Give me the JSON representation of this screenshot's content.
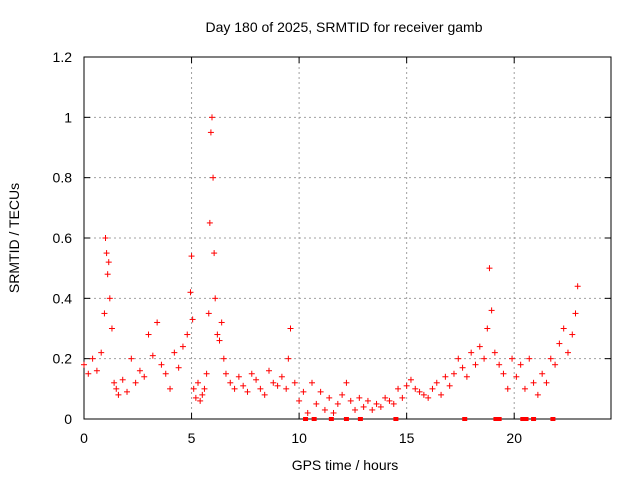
{
  "chart_data": {
    "type": "scatter",
    "title": "Day 180 of 2025, SRMTID for receiver gamb",
    "xlabel": "GPS time / hours",
    "ylabel": "SRMTID / TECUs",
    "xlim": [
      0,
      24.5
    ],
    "ylim": [
      0,
      1.2
    ],
    "x_ticks": [
      0,
      5,
      10,
      15,
      20
    ],
    "y_ticks": [
      0,
      0.2,
      0.4,
      0.6,
      0.8,
      1,
      1.2
    ],
    "x_tick_labels": [
      "0",
      "5",
      "10",
      "15",
      "20"
    ],
    "y_tick_labels": [
      "0",
      "0.2",
      "0.4",
      "0.6",
      "0.8",
      "1",
      "1.2"
    ],
    "grid": true,
    "marker": "+",
    "series": [
      {
        "name": "SRMTID",
        "color": "#ff0000",
        "x": [
          0.0,
          0.2,
          0.4,
          0.6,
          0.8,
          0.95,
          1.0,
          1.05,
          1.1,
          1.15,
          1.2,
          1.3,
          1.4,
          1.5,
          1.6,
          1.8,
          2.0,
          2.2,
          2.4,
          2.6,
          2.8,
          3.0,
          3.2,
          3.4,
          3.6,
          3.8,
          4.0,
          4.2,
          4.4,
          4.6,
          4.8,
          4.95,
          5.0,
          5.05,
          5.1,
          5.2,
          5.3,
          5.4,
          5.5,
          5.6,
          5.7,
          5.8,
          5.85,
          5.9,
          5.95,
          6.0,
          6.05,
          6.1,
          6.2,
          6.3,
          6.4,
          6.5,
          6.6,
          6.8,
          7.0,
          7.2,
          7.4,
          7.6,
          7.8,
          8.0,
          8.2,
          8.4,
          8.6,
          8.8,
          9.0,
          9.2,
          9.4,
          9.5,
          9.6,
          9.8,
          10.0,
          10.2,
          10.4,
          10.6,
          10.8,
          11.0,
          11.2,
          11.4,
          11.6,
          11.8,
          12.0,
          12.2,
          12.4,
          12.6,
          12.8,
          13.0,
          13.2,
          13.4,
          13.6,
          13.8,
          14.0,
          14.2,
          14.4,
          14.6,
          14.8,
          15.0,
          15.2,
          15.4,
          15.6,
          15.8,
          16.0,
          16.2,
          16.4,
          16.6,
          16.8,
          17.0,
          17.2,
          17.4,
          17.6,
          17.8,
          18.0,
          18.2,
          18.4,
          18.6,
          18.75,
          18.85,
          18.95,
          19.1,
          19.3,
          19.5,
          19.7,
          19.9,
          20.1,
          20.3,
          20.5,
          20.7,
          20.9,
          21.1,
          21.3,
          21.5,
          21.7,
          21.9,
          22.1,
          22.3,
          22.5,
          22.7,
          22.85,
          22.95
        ],
        "y": [
          0.18,
          0.15,
          0.2,
          0.16,
          0.22,
          0.35,
          0.6,
          0.55,
          0.48,
          0.52,
          0.4,
          0.3,
          0.12,
          0.1,
          0.08,
          0.13,
          0.09,
          0.2,
          0.12,
          0.16,
          0.14,
          0.28,
          0.21,
          0.32,
          0.18,
          0.15,
          0.1,
          0.22,
          0.17,
          0.24,
          0.28,
          0.42,
          0.54,
          0.33,
          0.1,
          0.07,
          0.12,
          0.06,
          0.08,
          0.1,
          0.15,
          0.35,
          0.65,
          0.95,
          1.0,
          0.8,
          0.55,
          0.4,
          0.28,
          0.26,
          0.32,
          0.2,
          0.15,
          0.12,
          0.1,
          0.14,
          0.11,
          0.09,
          0.15,
          0.13,
          0.1,
          0.08,
          0.16,
          0.12,
          0.11,
          0.14,
          0.1,
          0.2,
          0.3,
          0.12,
          0.06,
          0.09,
          0.02,
          0.12,
          0.05,
          0.09,
          0.03,
          0.07,
          0.02,
          0.05,
          0.08,
          0.12,
          0.06,
          0.03,
          0.07,
          0.04,
          0.06,
          0.03,
          0.05,
          0.04,
          0.07,
          0.06,
          0.05,
          0.1,
          0.07,
          0.11,
          0.13,
          0.1,
          0.09,
          0.08,
          0.07,
          0.1,
          0.12,
          0.08,
          0.14,
          0.11,
          0.15,
          0.2,
          0.17,
          0.14,
          0.22,
          0.18,
          0.24,
          0.2,
          0.3,
          0.5,
          0.36,
          0.22,
          0.18,
          0.15,
          0.1,
          0.2,
          0.14,
          0.18,
          0.1,
          0.2,
          0.12,
          0.08,
          0.15,
          0.12,
          0.2,
          0.18,
          0.25,
          0.3,
          0.22,
          0.28,
          0.35,
          0.44
        ]
      }
    ],
    "zero_markers_x": [
      10.3,
      10.7,
      11.5,
      12.2,
      12.85,
      14.5,
      17.7,
      19.15,
      19.3,
      20.4,
      20.55,
      20.9,
      21.8
    ]
  }
}
